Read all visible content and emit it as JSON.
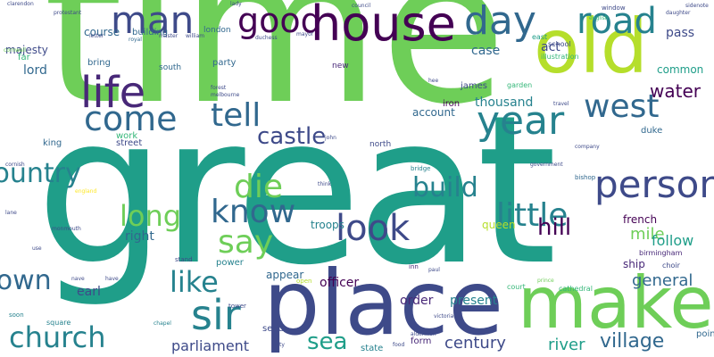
{
  "colors": {
    "background": "#ffffff",
    "palette": [
      "#440154",
      "#482878",
      "#3e4a89",
      "#31688e",
      "#26828e",
      "#1f9e89",
      "#35b779",
      "#6ece58",
      "#b5de2b",
      "#fde725"
    ]
  },
  "words": [
    "time",
    "great",
    "place",
    "make",
    "old",
    "house",
    "good",
    "man",
    "day",
    "road",
    "life",
    "come",
    "year",
    "west",
    "person",
    "tell",
    "church",
    "country",
    "town",
    "sir",
    "say",
    "know",
    "like",
    "look",
    "die",
    "long",
    "little",
    "hill",
    "build",
    "mile",
    "castle",
    "sea",
    "village",
    "century",
    "river",
    "water",
    "lord",
    "general",
    "follow",
    "officer",
    "parliament",
    "order",
    "present",
    "earl",
    "right",
    "french",
    "ship",
    "troops",
    "queen",
    "account",
    "thousand",
    "case",
    "act",
    "common",
    "pass",
    "course",
    "majesty",
    "far",
    "bring",
    "party",
    "appear",
    "power",
    "state",
    "form",
    "point",
    "send",
    "duke",
    "street",
    "work",
    "king",
    "iron",
    "james",
    "north",
    "new",
    "south",
    "london",
    "building",
    "royal",
    "school",
    "east",
    "garden",
    "illustration",
    "cathedral",
    "birmingham",
    "choir",
    "court",
    "prince",
    "square",
    "chapel",
    "tower",
    "stand",
    "soon",
    "open",
    "inn",
    "bridge",
    "bishop",
    "think",
    "government",
    "company",
    "window",
    "english",
    "council",
    "sidenote",
    "daughter",
    "protestant",
    "clarendon",
    "cornwall",
    "cornish",
    "england",
    "lane",
    "letter",
    "master",
    "william",
    "duchess",
    "mayor",
    "john",
    "forest",
    "nave",
    "have",
    "paul",
    "victoria",
    "city",
    "aldermen",
    "food",
    "melbourne",
    "travel",
    "hee",
    "monmouth",
    "use",
    "lady"
  ]
}
